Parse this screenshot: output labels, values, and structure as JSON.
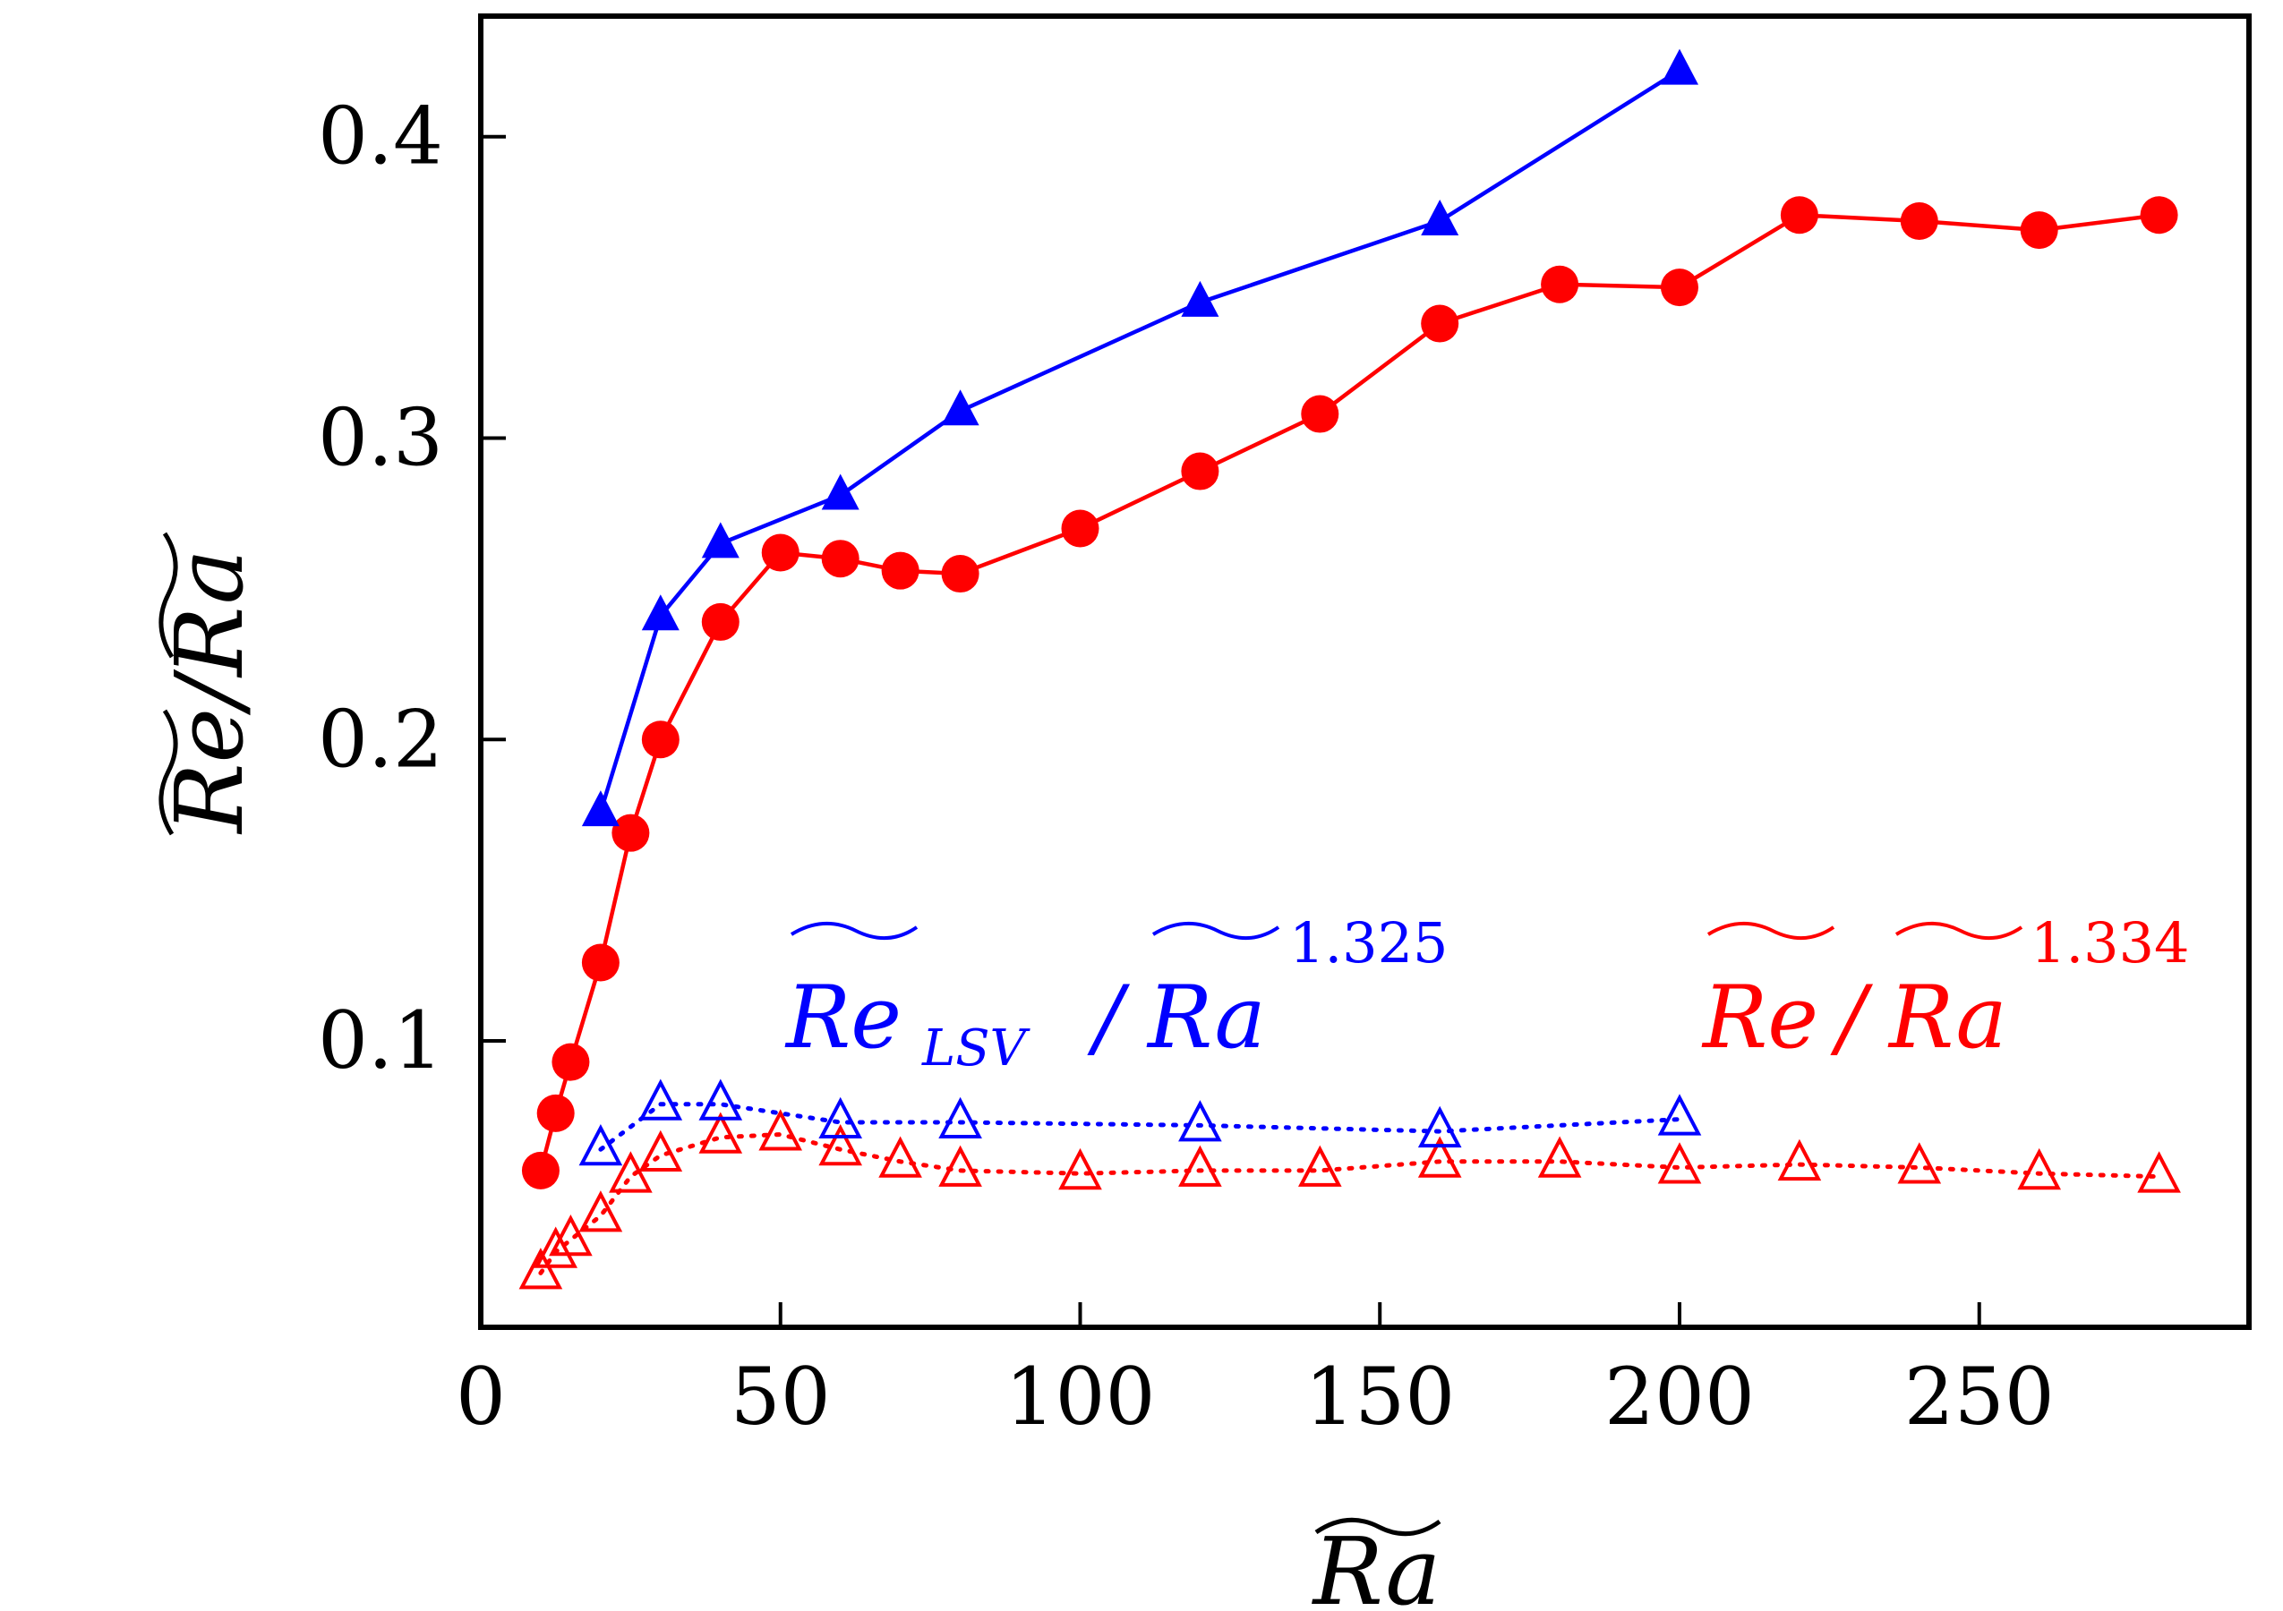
{
  "chart_data": {
    "type": "line",
    "title": "",
    "xlabel": "Ra",
    "ylabel": "Re/Ra",
    "xlim": [
      0,
      295
    ],
    "ylim": [
      0.005,
      0.44
    ],
    "x_ticks": [
      0,
      50,
      100,
      150,
      200,
      250
    ],
    "y_ticks": [
      0.1,
      0.2,
      0.3,
      0.4
    ],
    "x_tick_labels": [
      "0",
      "50",
      "100",
      "150",
      "200",
      "250"
    ],
    "y_tick_labels": [
      "0.1",
      "0.2",
      "0.3",
      "0.4"
    ],
    "grid": false,
    "series": [
      {
        "name": "Re/Ra (filled circles)",
        "color": "#ff0000",
        "marker": "circle-filled",
        "line": "solid",
        "x": [
          10,
          12.5,
          15,
          20,
          25,
          30,
          40,
          50,
          60,
          70,
          80,
          100,
          120,
          140,
          160,
          180,
          200,
          220,
          240,
          260,
          280
        ],
        "y": [
          0.057,
          0.076,
          0.093,
          0.126,
          0.169,
          0.2,
          0.239,
          0.262,
          0.26,
          0.256,
          0.255,
          0.27,
          0.289,
          0.308,
          0.338,
          0.351,
          0.35,
          0.374,
          0.372,
          0.369,
          0.374
        ]
      },
      {
        "name": "Re_LSV/Ra (filled triangles)",
        "color": "#0000ff",
        "marker": "triangle-filled",
        "line": "solid",
        "x": [
          20,
          30,
          40,
          60,
          80,
          120,
          160,
          200
        ],
        "y": [
          0.176,
          0.241,
          0.265,
          0.281,
          0.309,
          0.345,
          0.372,
          0.422
        ]
      },
      {
        "name": "Re_LSV/Ra^1.325",
        "color": "#0000ff",
        "marker": "triangle-open",
        "line": "dotted",
        "x": [
          20,
          30,
          40,
          60,
          80,
          120,
          160,
          200
        ],
        "y": [
          0.064,
          0.079,
          0.079,
          0.073,
          0.073,
          0.072,
          0.07,
          0.074
        ]
      },
      {
        "name": "Re/Ra^1.334",
        "color": "#ff0000",
        "marker": "triangle-open",
        "line": "dotted",
        "x": [
          10,
          12.5,
          15,
          20,
          25,
          30,
          40,
          50,
          60,
          70,
          80,
          100,
          120,
          140,
          160,
          180,
          200,
          220,
          240,
          260,
          280
        ],
        "y": [
          0.023,
          0.03,
          0.034,
          0.042,
          0.055,
          0.062,
          0.068,
          0.069,
          0.064,
          0.06,
          0.057,
          0.056,
          0.057,
          0.057,
          0.06,
          0.06,
          0.058,
          0.059,
          0.058,
          0.056,
          0.055
        ]
      }
    ],
    "annotations": {
      "blue": {
        "base": "Re",
        "sub": "LSV",
        "slash": "/",
        "denom": "Ra",
        "exp": "1.325",
        "color": "#0000ff"
      },
      "red": {
        "base": "Re",
        "slash": "/",
        "denom": "Ra",
        "exp": "1.334",
        "color": "#ff0000"
      }
    }
  }
}
